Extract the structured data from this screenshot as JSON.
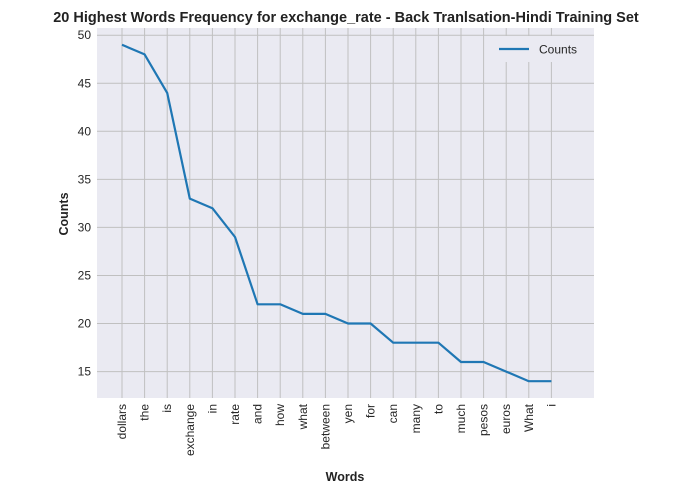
{
  "chart_data": {
    "type": "line",
    "title": "20 Highest Words Frequency for exchange_rate - Back Tranlsation-Hindi Training Set",
    "xlabel": "Words",
    "ylabel": "Counts",
    "categories": [
      "dollars",
      "the",
      "is",
      "exchange",
      "in",
      "rate",
      "and",
      "how",
      "what",
      "between",
      "yen",
      "for",
      "can",
      "many",
      "to",
      "much",
      "pesos",
      "euros",
      "What",
      "i"
    ],
    "series": [
      {
        "name": "Counts",
        "values": [
          49,
          48,
          44,
          33,
          32,
          29,
          22,
          22,
          21,
          21,
          20,
          20,
          18,
          18,
          18,
          16,
          16,
          15,
          14,
          14
        ],
        "color": "#1f77b4"
      }
    ],
    "ylim": [
      12.25,
      50.75
    ],
    "yticks": [
      15,
      20,
      25,
      30,
      35,
      40,
      45,
      50
    ],
    "grid": true,
    "legend": "top-right",
    "background": "#eaeaf2",
    "grid_color": "#c0c0c0"
  }
}
